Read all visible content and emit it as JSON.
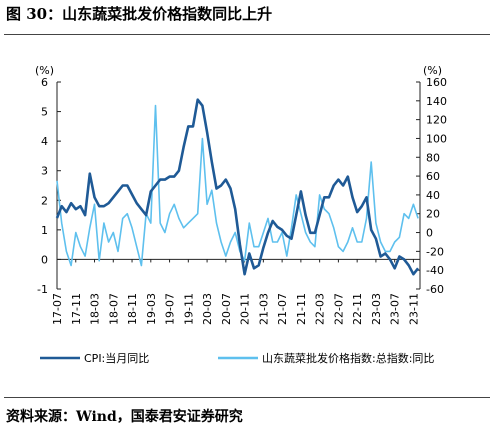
{
  "title": "图 30：山东蔬菜批发价格指数同比上升",
  "source": "资料来源：Wind，国泰君安证券研究",
  "chart_data": {
    "type": "line",
    "left_unit": "(%)",
    "right_unit": "(%)",
    "y_left_lim": [
      -1,
      6
    ],
    "y_left_ticks": [
      -1,
      0,
      1,
      2,
      3,
      4,
      5,
      6
    ],
    "y_right_lim": [
      -60,
      160
    ],
    "y_right_ticks": [
      -60,
      -40,
      -20,
      0,
      20,
      40,
      60,
      80,
      100,
      120,
      140,
      160
    ],
    "x_lim": [
      2017.5,
      2023.95
    ],
    "x_ticks": [
      "17-07",
      "17-11",
      "18-03",
      "18-07",
      "18-11",
      "19-03",
      "19-07",
      "19-11",
      "20-03",
      "20-07",
      "20-11",
      "21-03",
      "21-07",
      "21-11",
      "22-03",
      "22-07",
      "22-11",
      "23-03",
      "23-07",
      "23-11"
    ],
    "series": [
      {
        "name": "CPI:当月同比",
        "axis": "left",
        "color": "#1f5a96",
        "x": [
          "2017-07",
          "2017-08",
          "2017-09",
          "2017-10",
          "2017-11",
          "2017-12",
          "2018-01",
          "2018-02",
          "2018-03",
          "2018-04",
          "2018-05",
          "2018-06",
          "2018-07",
          "2018-08",
          "2018-09",
          "2018-10",
          "2018-11",
          "2018-12",
          "2019-01",
          "2019-02",
          "2019-03",
          "2019-04",
          "2019-05",
          "2019-06",
          "2019-07",
          "2019-08",
          "2019-09",
          "2019-10",
          "2019-11",
          "2019-12",
          "2020-01",
          "2020-02",
          "2020-03",
          "2020-04",
          "2020-05",
          "2020-06",
          "2020-07",
          "2020-08",
          "2020-09",
          "2020-10",
          "2020-11",
          "2020-12",
          "2021-01",
          "2021-02",
          "2021-03",
          "2021-04",
          "2021-05",
          "2021-06",
          "2021-07",
          "2021-08",
          "2021-09",
          "2021-10",
          "2021-11",
          "2021-12",
          "2022-01",
          "2022-02",
          "2022-03",
          "2022-04",
          "2022-05",
          "2022-06",
          "2022-07",
          "2022-08",
          "2022-09",
          "2022-10",
          "2022-11",
          "2022-12",
          "2023-01",
          "2023-02",
          "2023-03",
          "2023-04",
          "2023-05",
          "2023-06",
          "2023-07",
          "2023-08",
          "2023-09",
          "2023-10",
          "2023-11",
          "2023-12"
        ],
        "values": [
          1.4,
          1.8,
          1.6,
          1.9,
          1.7,
          1.8,
          1.5,
          2.9,
          2.1,
          1.8,
          1.8,
          1.9,
          2.1,
          2.3,
          2.5,
          2.5,
          2.2,
          1.9,
          1.7,
          1.5,
          2.3,
          2.5,
          2.7,
          2.7,
          2.8,
          2.8,
          3.0,
          3.8,
          4.5,
          4.5,
          5.4,
          5.2,
          4.3,
          3.3,
          2.4,
          2.5,
          2.7,
          2.4,
          1.7,
          0.5,
          -0.5,
          0.2,
          -0.3,
          -0.2,
          0.4,
          0.9,
          1.3,
          1.1,
          1.0,
          0.8,
          0.7,
          1.5,
          2.3,
          1.5,
          0.9,
          0.9,
          1.5,
          2.1,
          2.1,
          2.5,
          2.7,
          2.5,
          2.8,
          2.1,
          1.6,
          1.8,
          2.1,
          1.0,
          0.7,
          0.1,
          0.2,
          0.0,
          -0.3,
          0.1,
          0.0,
          -0.2,
          -0.5,
          -0.3
        ]
      },
      {
        "name": "山东蔬菜批发价格指数:总指数:同比",
        "axis": "right",
        "color": "#5ec0ee",
        "x": [
          "2017-07",
          "2017-08",
          "2017-09",
          "2017-10",
          "2017-11",
          "2017-12",
          "2018-01",
          "2018-02",
          "2018-03",
          "2018-04",
          "2018-05",
          "2018-06",
          "2018-07",
          "2018-08",
          "2018-09",
          "2018-10",
          "2018-11",
          "2018-12",
          "2019-01",
          "2019-02",
          "2019-03",
          "2019-04",
          "2019-05",
          "2019-06",
          "2019-07",
          "2019-08",
          "2019-09",
          "2019-10",
          "2019-11",
          "2019-12",
          "2020-01",
          "2020-02",
          "2020-03",
          "2020-04",
          "2020-05",
          "2020-06",
          "2020-07",
          "2020-08",
          "2020-09",
          "2020-10",
          "2020-11",
          "2020-12",
          "2021-01",
          "2021-02",
          "2021-03",
          "2021-04",
          "2021-05",
          "2021-06",
          "2021-07",
          "2021-08",
          "2021-09",
          "2021-10",
          "2021-11",
          "2021-12",
          "2022-01",
          "2022-02",
          "2022-03",
          "2022-04",
          "2022-05",
          "2022-06",
          "2022-07",
          "2022-08",
          "2022-09",
          "2022-10",
          "2022-11",
          "2022-12",
          "2023-01",
          "2023-02",
          "2023-03",
          "2023-04",
          "2023-05",
          "2023-06",
          "2023-07",
          "2023-08",
          "2023-09",
          "2023-10",
          "2023-11",
          "2023-12"
        ],
        "values": [
          55,
          10,
          -20,
          -35,
          0,
          -15,
          -25,
          5,
          30,
          -30,
          10,
          -10,
          0,
          -20,
          15,
          20,
          5,
          -15,
          -35,
          20,
          10,
          135,
          10,
          0,
          20,
          30,
          15,
          5,
          10,
          15,
          20,
          100,
          30,
          45,
          10,
          -10,
          -25,
          -10,
          0,
          -20,
          -30,
          10,
          -15,
          -15,
          0,
          15,
          -10,
          -10,
          0,
          -25,
          5,
          40,
          20,
          0,
          -10,
          -15,
          40,
          25,
          20,
          5,
          -15,
          -20,
          -10,
          5,
          -10,
          -10,
          15,
          75,
          10,
          -10,
          -20,
          -20,
          -10,
          -5,
          20,
          15,
          30,
          15
        ]
      }
    ],
    "legend_position": "bottom"
  }
}
